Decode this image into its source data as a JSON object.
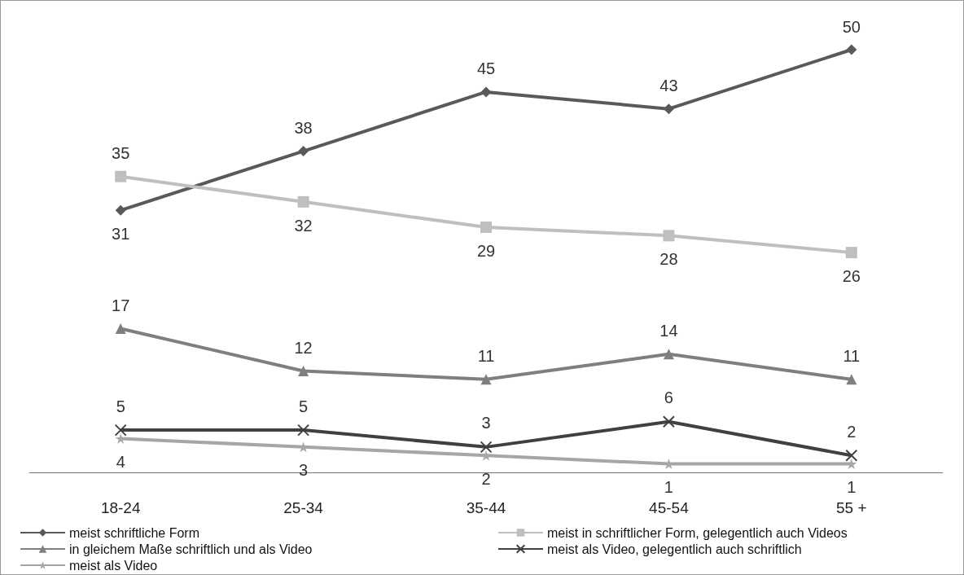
{
  "chart_data": {
    "type": "line",
    "categories": [
      "18-24",
      "25-34",
      "35-44",
      "45-54",
      "55 +"
    ],
    "series": [
      {
        "name": "meist schriftliche Form",
        "color": "#595959",
        "marker": "diamond",
        "values": [
          31,
          38,
          45,
          43,
          50
        ]
      },
      {
        "name": "meist in schriftlicher Form, gelegentlich auch Videos",
        "color": "#bfbfbf",
        "marker": "square",
        "values": [
          35,
          32,
          29,
          28,
          26
        ]
      },
      {
        "name": "in gleichem Maße schriftlich und als Video",
        "color": "#7f7f7f",
        "marker": "triangle",
        "values": [
          17,
          12,
          11,
          14,
          11
        ]
      },
      {
        "name": "meist als Video, gelegentlich auch schriftlich",
        "color": "#404040",
        "marker": "cross",
        "values": [
          5,
          5,
          3,
          6,
          2
        ]
      },
      {
        "name": "meist als Video",
        "color": "#a6a6a6",
        "marker": "star",
        "values": [
          4,
          3,
          2,
          1,
          1
        ]
      }
    ],
    "data_labels": true,
    "grid": false,
    "legend": "bottom",
    "tick_labels": "x"
  }
}
